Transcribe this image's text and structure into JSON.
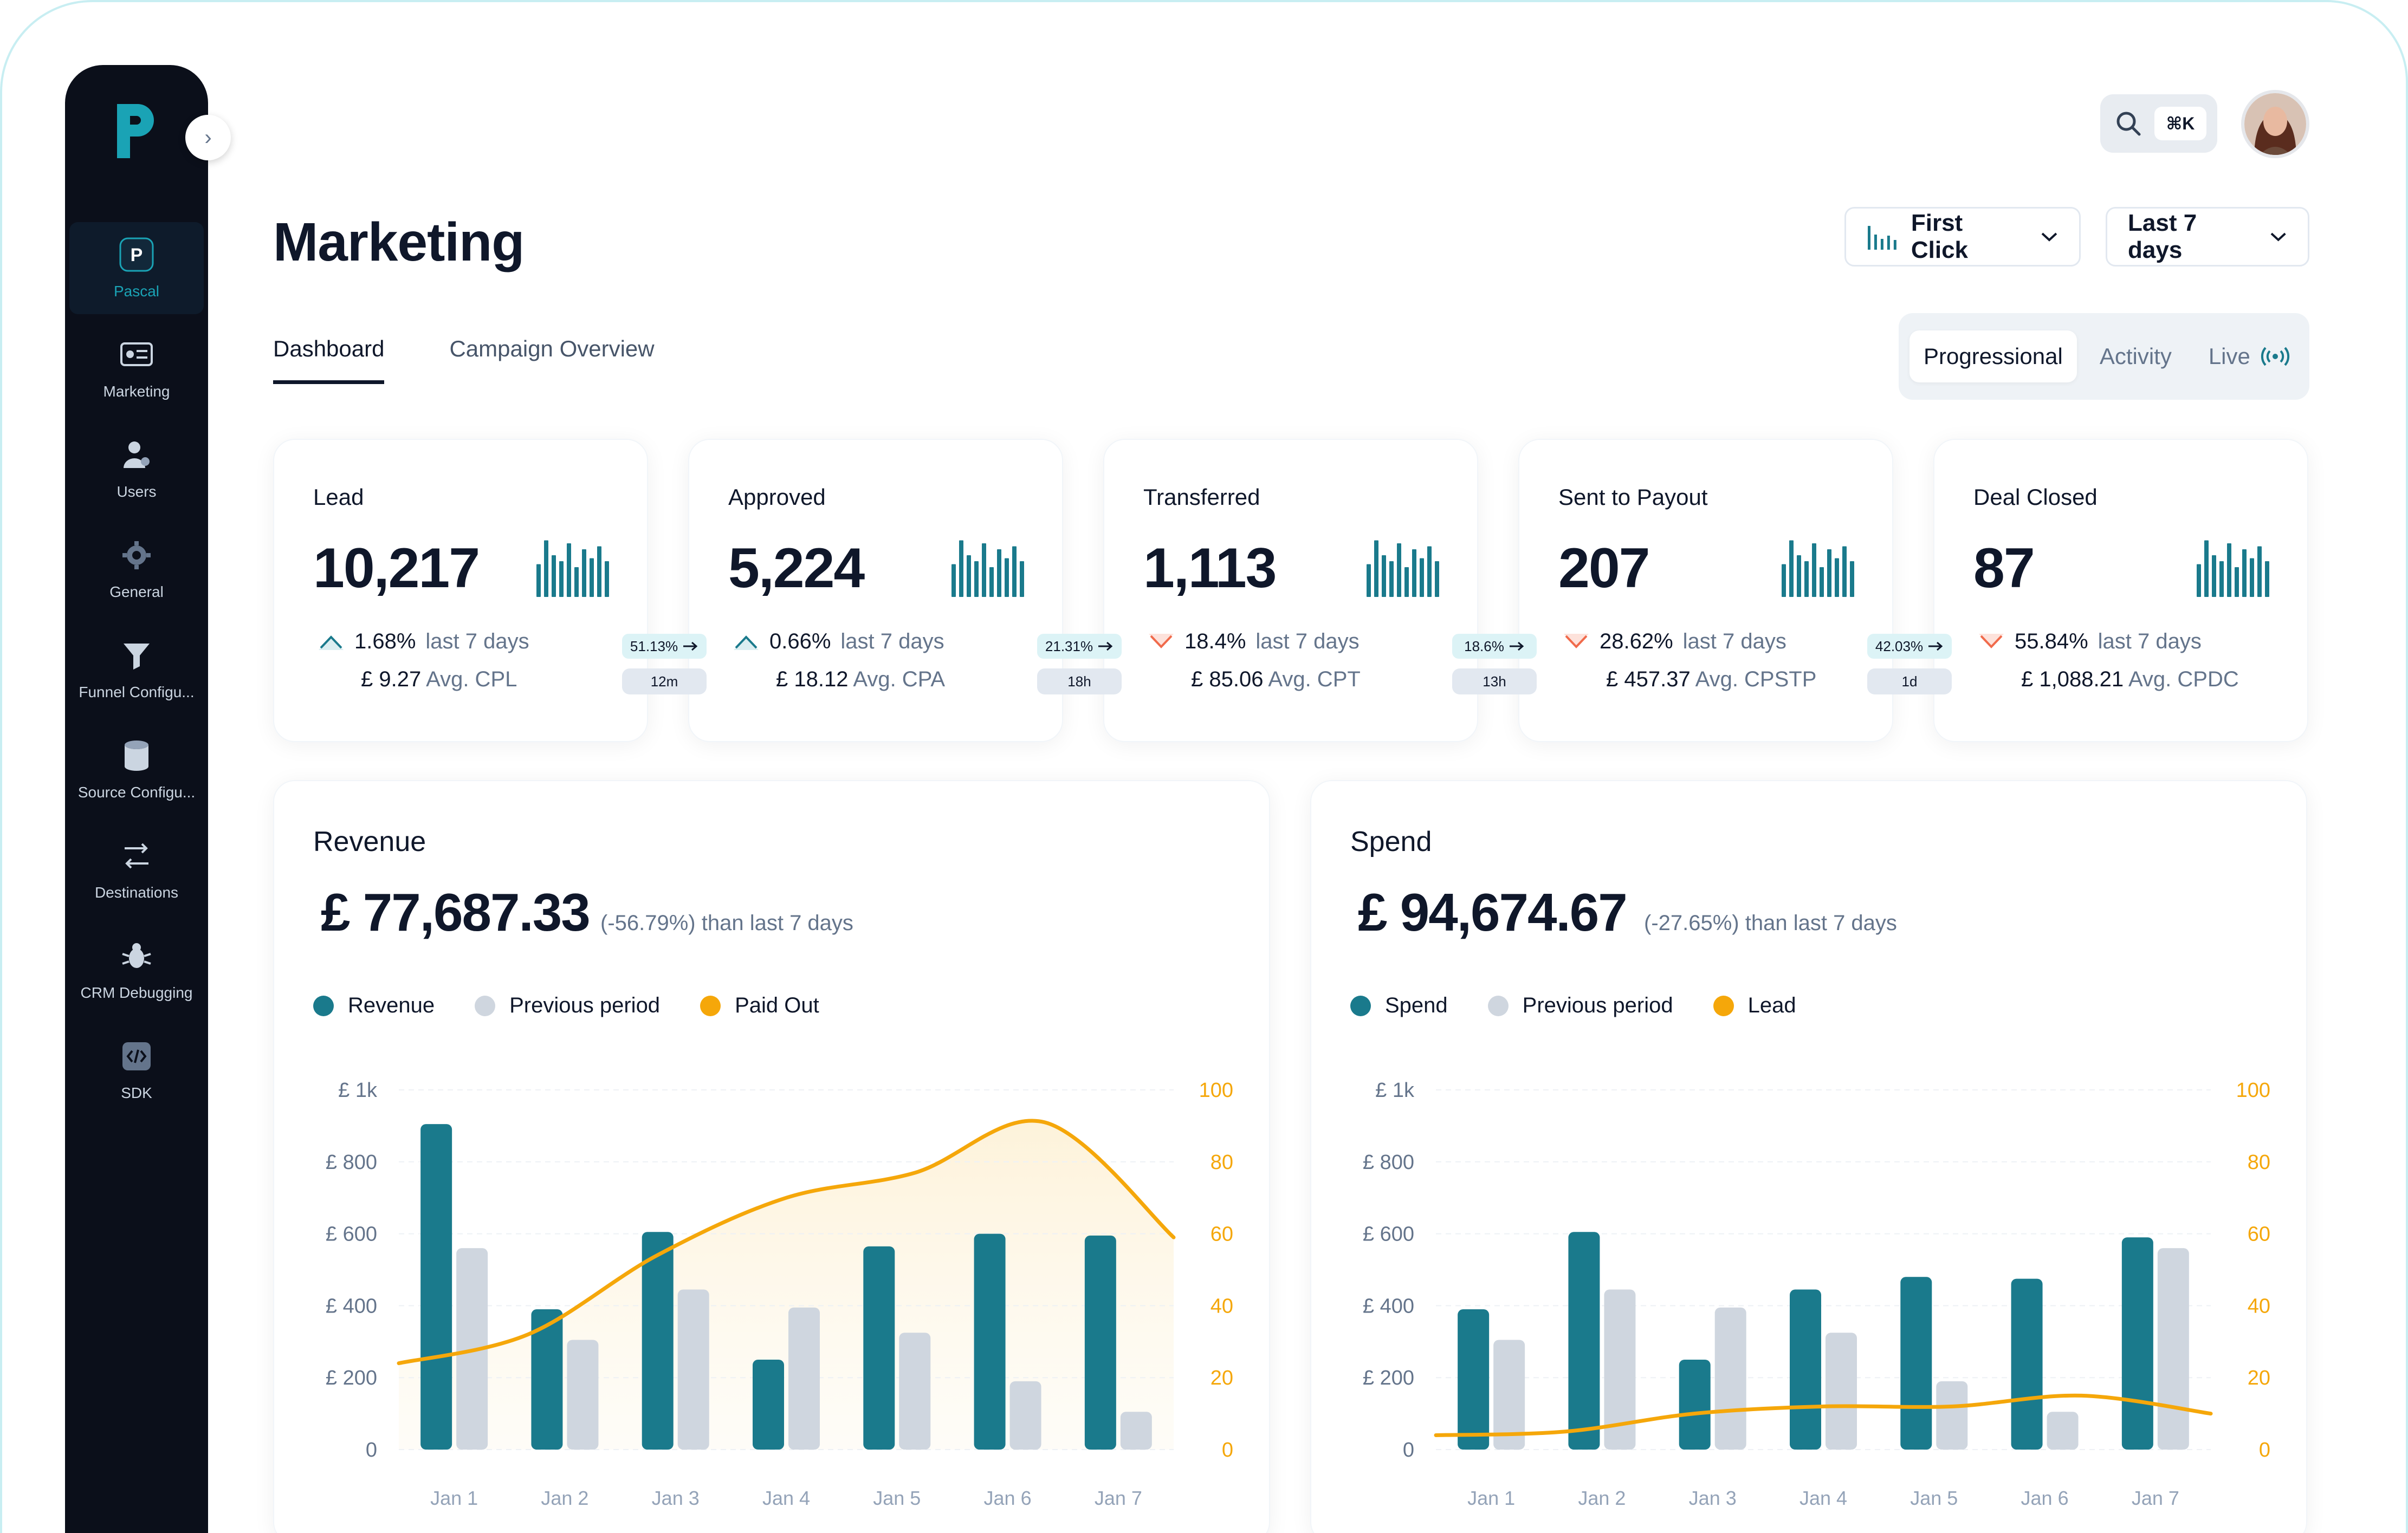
{
  "colors": {
    "primary": "#1a7a8c",
    "previous": "#cfd6df",
    "accent": "#f5a70a",
    "logo": "#1aa3b5",
    "down": "#f06a4b",
    "up": "#1a7a8c"
  },
  "sidebar": {
    "collapse_icon": "chevron-right-icon",
    "items": [
      {
        "label": "Pascal",
        "icon": "pascal-logo-icon",
        "active": true
      },
      {
        "label": "Marketing",
        "icon": "marketing-icon",
        "active": false
      },
      {
        "label": "Users",
        "icon": "users-icon",
        "active": false
      },
      {
        "label": "General",
        "icon": "gear-icon",
        "active": false
      },
      {
        "label": "Funnel Configu...",
        "icon": "funnel-icon",
        "active": false
      },
      {
        "label": "Source Configu...",
        "icon": "database-icon",
        "active": false
      },
      {
        "label": "Destinations",
        "icon": "destinations-icon",
        "active": false
      },
      {
        "label": "CRM Debugging",
        "icon": "bug-icon",
        "active": false
      },
      {
        "label": "SDK",
        "icon": "code-icon",
        "active": false
      }
    ]
  },
  "header": {
    "search_shortcut": "⌘K",
    "title": "Marketing",
    "attribution": "First Click",
    "range": "Last 7 days"
  },
  "tabs": [
    "Dashboard",
    "Campaign Overview"
  ],
  "view_modes": {
    "progressional": "Progressional",
    "activity": "Activity",
    "live": "Live"
  },
  "kpis": [
    {
      "title": "Lead",
      "value": "10,217",
      "direction": "up",
      "pct": "1.68%",
      "period": "last 7 days",
      "avg_value": "£ 9.27",
      "avg_label": "Avg. CPL"
    },
    {
      "title": "Approved",
      "value": "5,224",
      "direction": "up",
      "pct": "0.66%",
      "period": "last 7 days",
      "avg_value": "£ 18.12",
      "avg_label": "Avg. CPA"
    },
    {
      "title": "Transferred",
      "value": "1,113",
      "direction": "down",
      "pct": "18.4%",
      "period": "last 7 days",
      "avg_value": "£ 85.06",
      "avg_label": "Avg. CPT"
    },
    {
      "title": "Sent to Payout",
      "value": "207",
      "direction": "down",
      "pct": "28.62%",
      "period": "last 7 days",
      "avg_value": "£ 457.37",
      "avg_label": "Avg. CPSTP"
    },
    {
      "title": "Deal Closed",
      "value": "87",
      "direction": "down",
      "pct": "55.84%",
      "period": "last 7 days",
      "avg_value": "£ 1,088.21",
      "avg_label": "Avg. CPDC"
    }
  ],
  "conversions": [
    {
      "pct": "51.13%",
      "time": "12m"
    },
    {
      "pct": "21.31%",
      "time": "18h"
    },
    {
      "pct": "18.6%",
      "time": "13h"
    },
    {
      "pct": "42.03%",
      "time": "1d"
    }
  ],
  "chart_data": [
    {
      "type": "bar",
      "title": "Revenue",
      "total": "£ 77,687.33",
      "delta": "(-56.79%) than last 7 days",
      "categories": [
        "Jan 1",
        "Jan 2",
        "Jan 3",
        "Jan 4",
        "Jan 5",
        "Jan 6",
        "Jan 7"
      ],
      "series": [
        {
          "name": "Revenue",
          "values": [
            905,
            390,
            605,
            250,
            565,
            600,
            595
          ]
        },
        {
          "name": "Previous period",
          "values": [
            560,
            305,
            445,
            395,
            325,
            190,
            105
          ]
        },
        {
          "name": "Paid Out",
          "type": "area-line",
          "axis": "right",
          "values": [
            24,
            32,
            54,
            70,
            77,
            91,
            59
          ]
        }
      ],
      "y_ticks": [
        "£ 1k",
        "£ 800",
        "£ 600",
        "£ 400",
        "£ 200",
        "0"
      ],
      "ylim": [
        0,
        1000
      ],
      "y2_ticks": [
        "100",
        "80",
        "60",
        "40",
        "20",
        "0"
      ],
      "y2lim": [
        0,
        100
      ],
      "grid": true,
      "legend": "top-left"
    },
    {
      "type": "bar",
      "title": "Spend",
      "total": "£ 94,674.67",
      "delta": "(-27.65%) than last 7 days",
      "categories": [
        "Jan 1",
        "Jan 2",
        "Jan 3",
        "Jan 4",
        "Jan 5",
        "Jan 6",
        "Jan 7"
      ],
      "series": [
        {
          "name": "Spend",
          "values": [
            390,
            605,
            250,
            445,
            480,
            475,
            590
          ]
        },
        {
          "name": "Previous period",
          "values": [
            305,
            445,
            395,
            325,
            190,
            105,
            560
          ]
        },
        {
          "name": "Lead",
          "type": "line",
          "axis": "right",
          "values": [
            4,
            5,
            10,
            12,
            12,
            15,
            10
          ]
        }
      ],
      "y_ticks": [
        "£ 1k",
        "£ 800",
        "£ 600",
        "£ 400",
        "£ 200",
        "0"
      ],
      "ylim": [
        0,
        1000
      ],
      "y2_ticks": [
        "100",
        "80",
        "60",
        "40",
        "20",
        "0"
      ],
      "y2lim": [
        0,
        100
      ],
      "grid": true,
      "legend": "top-left"
    }
  ]
}
